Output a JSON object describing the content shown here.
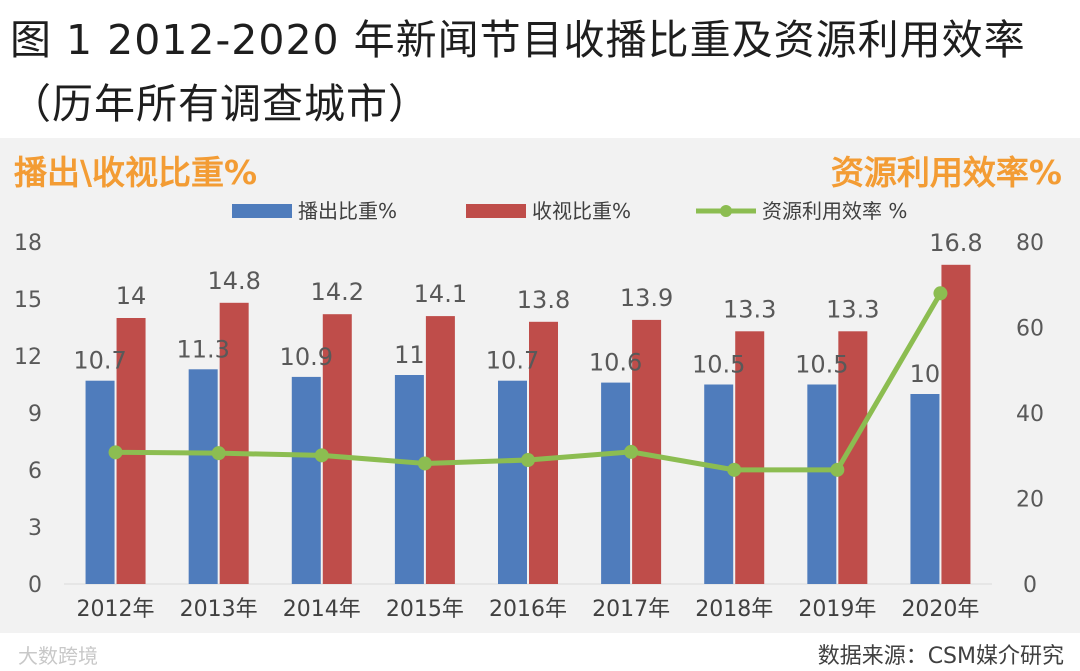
{
  "title": "图 1 2012-2020 年新闻节目收播比重及资源利用效率（历年所有调查城市）",
  "source": "数据来源：CSM媒介研究",
  "watermark": "大数跨境",
  "colors": {
    "bar1": "#4f7cbc",
    "bar2": "#bf4d4a",
    "line": "#8cbd51",
    "accent": "#f39c34",
    "plot_bg": "#f2f2f2"
  },
  "chart_data": {
    "type": "bar",
    "categories": [
      "2012年",
      "2013年",
      "2014年",
      "2015年",
      "2016年",
      "2017年",
      "2018年",
      "2019年",
      "2020年"
    ],
    "y_left": {
      "title": "播出\\收视比重%",
      "range": [
        0,
        18
      ],
      "ticks": [
        0,
        3,
        6,
        9,
        12,
        15,
        18
      ]
    },
    "y_right": {
      "title": "资源利用效率%",
      "range": [
        0,
        80
      ],
      "ticks": [
        0,
        20,
        40,
        60,
        80
      ]
    },
    "legend_position": "top",
    "series": [
      {
        "name": "播出比重%",
        "type": "bar",
        "axis": "left",
        "values": [
          10.7,
          11.3,
          10.9,
          11,
          10.7,
          10.6,
          10.5,
          10.5,
          10
        ],
        "labels": [
          "10.7",
          "11.3",
          "10.9",
          "11",
          "10.7",
          "10.6",
          "10.5",
          "10.5",
          "10"
        ]
      },
      {
        "name": "收视比重%",
        "type": "bar",
        "axis": "left",
        "values": [
          14,
          14.8,
          14.2,
          14.1,
          13.8,
          13.9,
          13.3,
          13.3,
          16.8
        ],
        "labels": [
          "14",
          "14.8",
          "14.2",
          "14.1",
          "13.8",
          "13.9",
          "13.3",
          "13.3",
          "16.8"
        ]
      },
      {
        "name": "资源利用效率 %",
        "type": "line",
        "axis": "right",
        "values": [
          30.8,
          30.6,
          30.1,
          28.2,
          29.0,
          30.9,
          26.7,
          26.7,
          68.0
        ]
      }
    ]
  }
}
